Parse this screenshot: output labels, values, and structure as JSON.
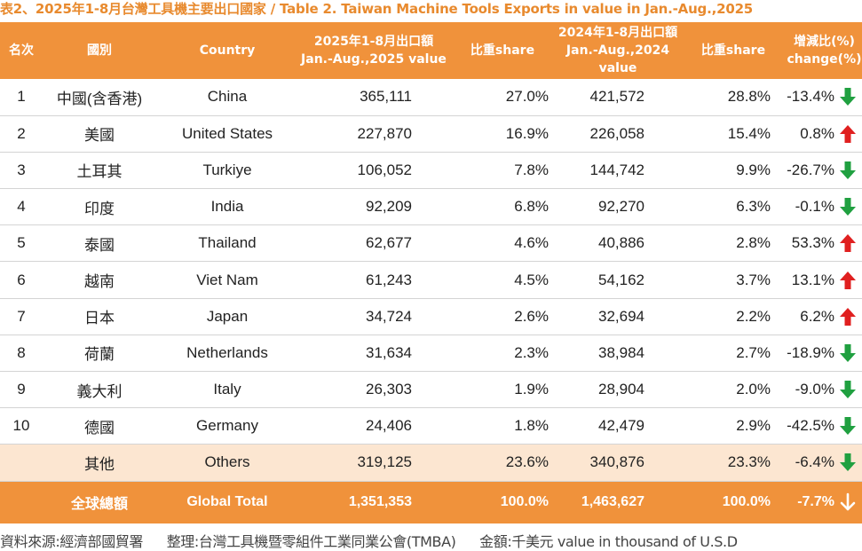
{
  "title": "表2、2025年1-8月台灣工具機主要出口國家 / Table 2. Taiwan Machine Tools Exports in value in Jan.-Aug.,2025",
  "colors": {
    "accent": "#f0923b",
    "title": "#e88a2e",
    "up": "#e02020",
    "down": "#20a040",
    "others_bg": "#fce6d1"
  },
  "headers": {
    "rank": "名次",
    "name_zh": "國別",
    "country": "Country",
    "v2025_l1": "2025年1-8月出口額",
    "v2025_l2": "Jan.-Aug.,2025 value",
    "share2025": "比重share",
    "v2024_l1": "2024年1-8月出口額",
    "v2024_l2": "Jan.-Aug.,2024 value",
    "share2024": "比重share",
    "chg_l1": "增減比(%)",
    "chg_l2": "change(%)"
  },
  "rows": [
    {
      "rank": "1",
      "zh": "中國(含香港)",
      "country": "China",
      "v2025": "365,111",
      "s2025": "27.0%",
      "v2024": "421,572",
      "s2024": "28.8%",
      "chg": "-13.4%",
      "dir": "down"
    },
    {
      "rank": "2",
      "zh": "美國",
      "country": "United States",
      "v2025": "227,870",
      "s2025": "16.9%",
      "v2024": "226,058",
      "s2024": "15.4%",
      "chg": "0.8%",
      "dir": "up"
    },
    {
      "rank": "3",
      "zh": "土耳其",
      "country": "Turkiye",
      "v2025": "106,052",
      "s2025": "7.8%",
      "v2024": "144,742",
      "s2024": "9.9%",
      "chg": "-26.7%",
      "dir": "down"
    },
    {
      "rank": "4",
      "zh": "印度",
      "country": "India",
      "v2025": "92,209",
      "s2025": "6.8%",
      "v2024": "92,270",
      "s2024": "6.3%",
      "chg": "-0.1%",
      "dir": "down"
    },
    {
      "rank": "5",
      "zh": "泰國",
      "country": "Thailand",
      "v2025": "62,677",
      "s2025": "4.6%",
      "v2024": "40,886",
      "s2024": "2.8%",
      "chg": "53.3%",
      "dir": "up"
    },
    {
      "rank": "6",
      "zh": "越南",
      "country": "Viet Nam",
      "v2025": "61,243",
      "s2025": "4.5%",
      "v2024": "54,162",
      "s2024": "3.7%",
      "chg": "13.1%",
      "dir": "up"
    },
    {
      "rank": "7",
      "zh": "日本",
      "country": "Japan",
      "v2025": "34,724",
      "s2025": "2.6%",
      "v2024": "32,694",
      "s2024": "2.2%",
      "chg": "6.2%",
      "dir": "up"
    },
    {
      "rank": "8",
      "zh": "荷蘭",
      "country": "Netherlands",
      "v2025": "31,634",
      "s2025": "2.3%",
      "v2024": "38,984",
      "s2024": "2.7%",
      "chg": "-18.9%",
      "dir": "down"
    },
    {
      "rank": "9",
      "zh": "義大利",
      "country": "Italy",
      "v2025": "26,303",
      "s2025": "1.9%",
      "v2024": "28,904",
      "s2024": "2.0%",
      "chg": "-9.0%",
      "dir": "down"
    },
    {
      "rank": "10",
      "zh": "德國",
      "country": "Germany",
      "v2025": "24,406",
      "s2025": "1.8%",
      "v2024": "42,479",
      "s2024": "2.9%",
      "chg": "-42.5%",
      "dir": "down"
    }
  ],
  "others": {
    "rank": "",
    "zh": "其他",
    "country": "Others",
    "v2025": "319,125",
    "s2025": "23.6%",
    "v2024": "340,876",
    "s2024": "23.3%",
    "chg": "-6.4%",
    "dir": "down"
  },
  "total": {
    "zh": "全球總額",
    "country": "Global Total",
    "v2025": "1,351,353",
    "s2025": "100.0%",
    "v2024": "1,463,627",
    "s2024": "100.0%",
    "chg": "-7.7%",
    "dir": "down-white"
  },
  "footer": {
    "source": "資料來源:經濟部國貿署",
    "compiled": "整理:台灣工具機暨零組件工業同業公會(TMBA)",
    "unit": "金額:千美元 value in thousand of U.S.D"
  }
}
